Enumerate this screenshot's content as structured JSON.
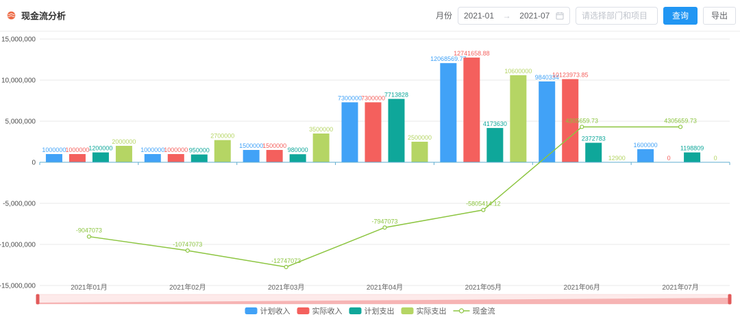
{
  "header": {
    "title": "现金流分析",
    "month_label": "月份",
    "date_start": "2021-01",
    "date_arrow": "→",
    "date_end": "2021-07",
    "project_placeholder": "请选择部门和项目",
    "query_label": "查询",
    "export_label": "导出"
  },
  "colors": {
    "primary": "#2196f3",
    "logo_orange": "#ed6a45",
    "axis_line": "#5fadcf",
    "grid": "#e8e8e8",
    "ytick_text": "#4b4b4b",
    "xtick_text": "#666666",
    "legend_text": "#5e5e5e",
    "datazoom_track": "#fdeaea",
    "datazoom_track_border": "#f6caca",
    "datazoom_shadow": "#f5aaaa",
    "datazoom_handle": "#e25a5a"
  },
  "chart_data": {
    "type": "bar",
    "title": "现金流分析",
    "categories": [
      "2021年01月",
      "2021年02月",
      "2021年03月",
      "2021年04月",
      "2021年05月",
      "2021年06月",
      "2021年07月"
    ],
    "series": [
      {
        "name": "计划收入",
        "type": "bar",
        "color": "#41a2f7",
        "values": [
          1000000,
          1000000,
          1500000,
          7300000,
          12068569.77,
          9840334,
          1600000
        ]
      },
      {
        "name": "实际收入",
        "type": "bar",
        "color": "#f4605d",
        "values": [
          1000000,
          1000000,
          1500000,
          7300000,
          12741658.88,
          10123973.85,
          0
        ]
      },
      {
        "name": "计划支出",
        "type": "bar",
        "color": "#0fa79a",
        "values": [
          1200000,
          950000,
          980000,
          7713828,
          4173630,
          2372783,
          1198809
        ]
      },
      {
        "name": "实际支出",
        "type": "bar",
        "color": "#b5d564",
        "values": [
          2000000,
          2700000,
          3500000,
          2500000,
          10600000,
          12900,
          0
        ]
      },
      {
        "name": "现金流",
        "type": "line",
        "color": "#8cc540",
        "values": [
          -9047073,
          -10747073,
          -12747073,
          -7947073,
          -5805414.12,
          4305659.73,
          4305659.73
        ]
      }
    ],
    "yticks": [
      15000000,
      10000000,
      5000000,
      0,
      -5000000,
      -10000000,
      -15000000
    ],
    "ylim": [
      -15000000,
      15000000
    ],
    "xlabel": "",
    "ylabel": "",
    "grid": true,
    "legend_position": "bottom",
    "datazoom": {
      "start_label": "",
      "end_label": ""
    }
  }
}
